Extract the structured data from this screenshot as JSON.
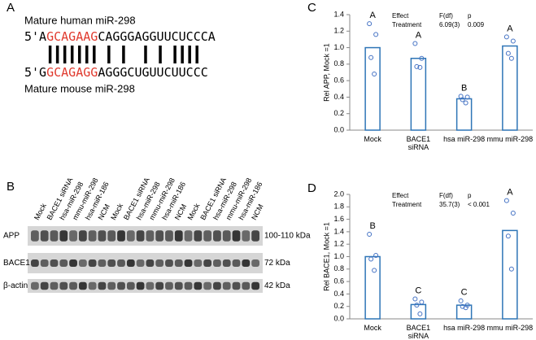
{
  "panel_a": {
    "letter": "A",
    "human_title": "Mature human miR-298",
    "human_seq": [
      "5'A",
      "GCAGAAG",
      "CAGGGAGGUUCUCCCA"
    ],
    "mouse_seq": [
      "5'G",
      "GCAGAGG",
      "AGGGCUGUUCUUCCC"
    ],
    "mouse_title": "Mature mouse miR-298"
  },
  "panel_b": {
    "letter": "B",
    "lanes": [
      "Mock",
      "BACE1 siRNA",
      "hsa-miR-298",
      "mmu-miR-298",
      "hsa-miR-186",
      "NCM",
      "Mock",
      "BACE1 siRNA",
      "hsa-miR-298",
      "mmu-miR-298",
      "hsa-miR-186",
      "NCM",
      "Mock",
      "BACE1 siRNA",
      "hsa-miR-298",
      "mmu-miR-298",
      "hsa-miR-186",
      "NCM"
    ],
    "lane_colors": [
      "#45b8d8",
      "#000000",
      "#d04a4a",
      "#7a3fa0",
      "#a01818",
      "#1f8a2a",
      "#45b8d8",
      "#000000",
      "#d04a4a",
      "#7a3fa0",
      "#a01818",
      "#1f8a2a",
      "#45b8d8",
      "#000000",
      "#d04a4a",
      "#7a3fa0",
      "#a01818",
      "#1f8a2a"
    ],
    "rows": [
      {
        "name": "APP",
        "size": "100-110 kDa"
      },
      {
        "name": "BACE1",
        "size": "72 kDa"
      },
      {
        "name": "β-actin",
        "size": "42 kDa"
      }
    ]
  },
  "chart_data": [
    {
      "type": "bar",
      "letter": "C",
      "y_label": "Rel APP, Mock =1",
      "color": "#2e75b6",
      "point_color": "#4472c4",
      "categories": [
        "Mock",
        "BACE1\nsiRNA",
        "hsa miR-298",
        "mmu miR-298"
      ],
      "values": [
        1.0,
        0.87,
        0.38,
        1.02
      ],
      "points": [
        [
          1.29,
          1.16,
          0.88,
          0.68
        ],
        [
          1.05,
          0.87,
          0.77,
          0.76
        ],
        [
          0.41,
          0.4,
          0.37,
          0.33
        ],
        [
          1.13,
          1.08,
          0.93,
          0.87
        ]
      ],
      "letters": [
        "A",
        "A",
        "B",
        "A"
      ],
      "stats": {
        "headers": [
          "Effect",
          "F(df)",
          "p"
        ],
        "row": [
          "Treatment",
          "6.09(3)",
          "0.009"
        ]
      },
      "ylim": [
        0,
        1.4
      ],
      "yticks": [
        {
          "value": 0,
          "label": "0.0"
        },
        {
          "value": 0.2,
          "label": "0.2"
        },
        {
          "value": 0.4,
          "label": "0.4"
        },
        {
          "value": 0.6,
          "label": "0.6"
        },
        {
          "value": 0.8,
          "label": "0.8"
        },
        {
          "value": 1,
          "label": "1.0"
        },
        {
          "value": 1.2,
          "label": "1.2"
        },
        {
          "value": 1.4,
          "label": "1.4"
        }
      ]
    },
    {
      "type": "bar",
      "letter": "D",
      "y_label": "Rel BACE1, Mock =1",
      "color": "#2e75b6",
      "point_color": "#4472c4",
      "categories": [
        "Mock",
        "BACE1\nsiRNA",
        "hsa miR-298",
        "mmu miR-298"
      ],
      "values": [
        1.0,
        0.23,
        0.22,
        1.42
      ],
      "points": [
        [
          1.36,
          1.02,
          0.96,
          0.78
        ],
        [
          0.32,
          0.27,
          0.22,
          0.08
        ],
        [
          0.29,
          0.22,
          0.2,
          0.18
        ],
        [
          1.9,
          1.7,
          1.33,
          0.8
        ]
      ],
      "letters": [
        "B",
        "C",
        "C",
        "A"
      ],
      "stats": {
        "headers": [
          "Effect",
          "F(df)",
          "p"
        ],
        "row": [
          "Treatment",
          "35.7(3)",
          "< 0.001"
        ]
      },
      "ylim": [
        0,
        2
      ],
      "yticks": [
        {
          "value": 0,
          "label": "0.0"
        },
        {
          "value": 0.2,
          "label": "0.2"
        },
        {
          "value": 0.4,
          "label": "0.4"
        },
        {
          "value": 0.6,
          "label": "0.6"
        },
        {
          "value": 0.8,
          "label": "0.8"
        },
        {
          "value": 1,
          "label": "1.0"
        },
        {
          "value": 1.2,
          "label": "1.2"
        },
        {
          "value": 1.4,
          "label": "1.4"
        },
        {
          "value": 1.6,
          "label": "1.6"
        },
        {
          "value": 1.8,
          "label": "1.8"
        },
        {
          "value": 2,
          "label": "2.0"
        }
      ]
    }
  ]
}
